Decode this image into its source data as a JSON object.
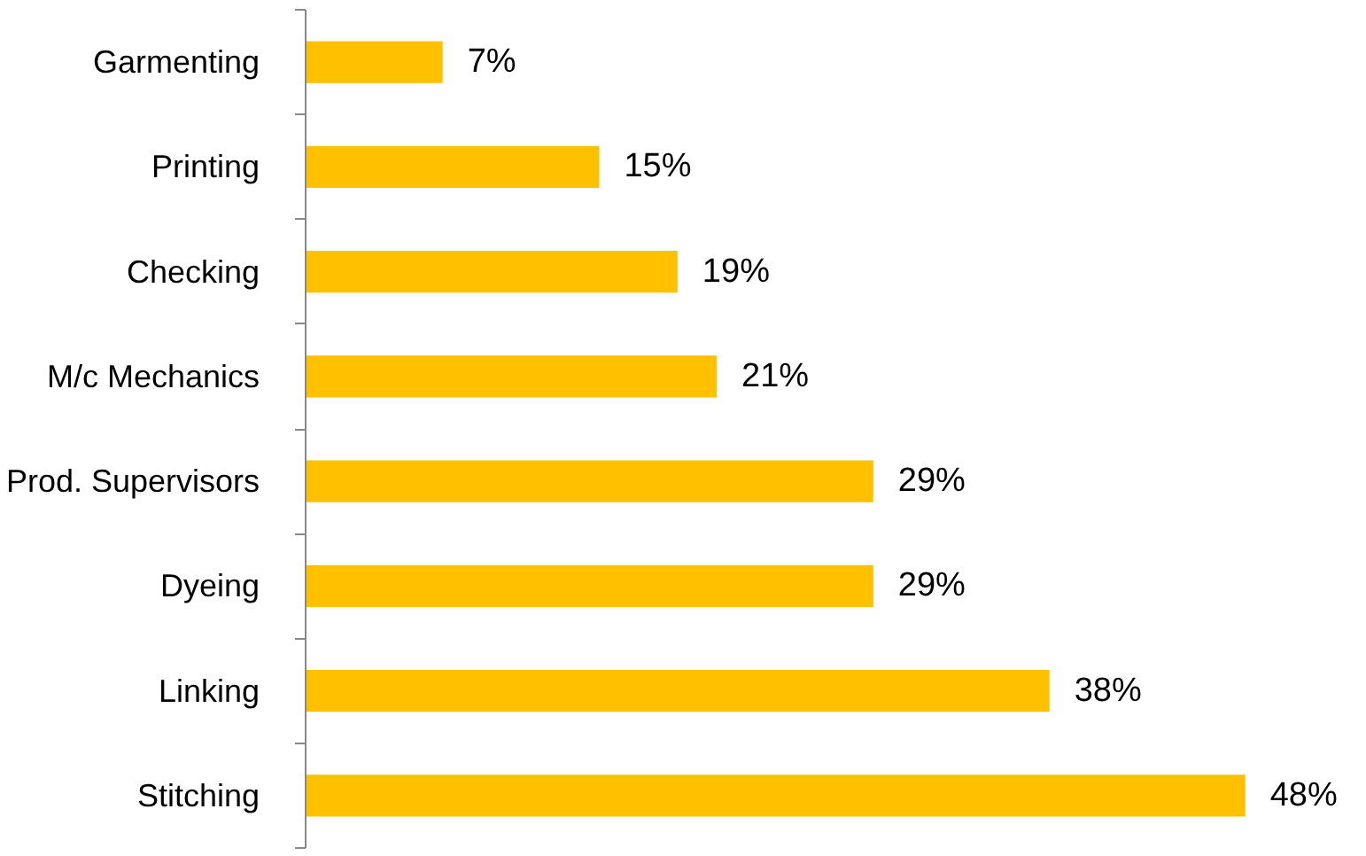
{
  "chart_data": {
    "type": "bar",
    "orientation": "horizontal",
    "categories": [
      "Garmenting",
      "Printing",
      "Checking",
      "M/c Mechanics",
      "Prod. Supervisors",
      "Dyeing",
      "Linking",
      "Stitching"
    ],
    "values": [
      7,
      15,
      19,
      21,
      29,
      29,
      38,
      48
    ],
    "value_labels": [
      "7%",
      "15%",
      "19%",
      "21%",
      "29%",
      "29%",
      "38%",
      "48%"
    ],
    "color": "#ffc000",
    "grid": false
  }
}
